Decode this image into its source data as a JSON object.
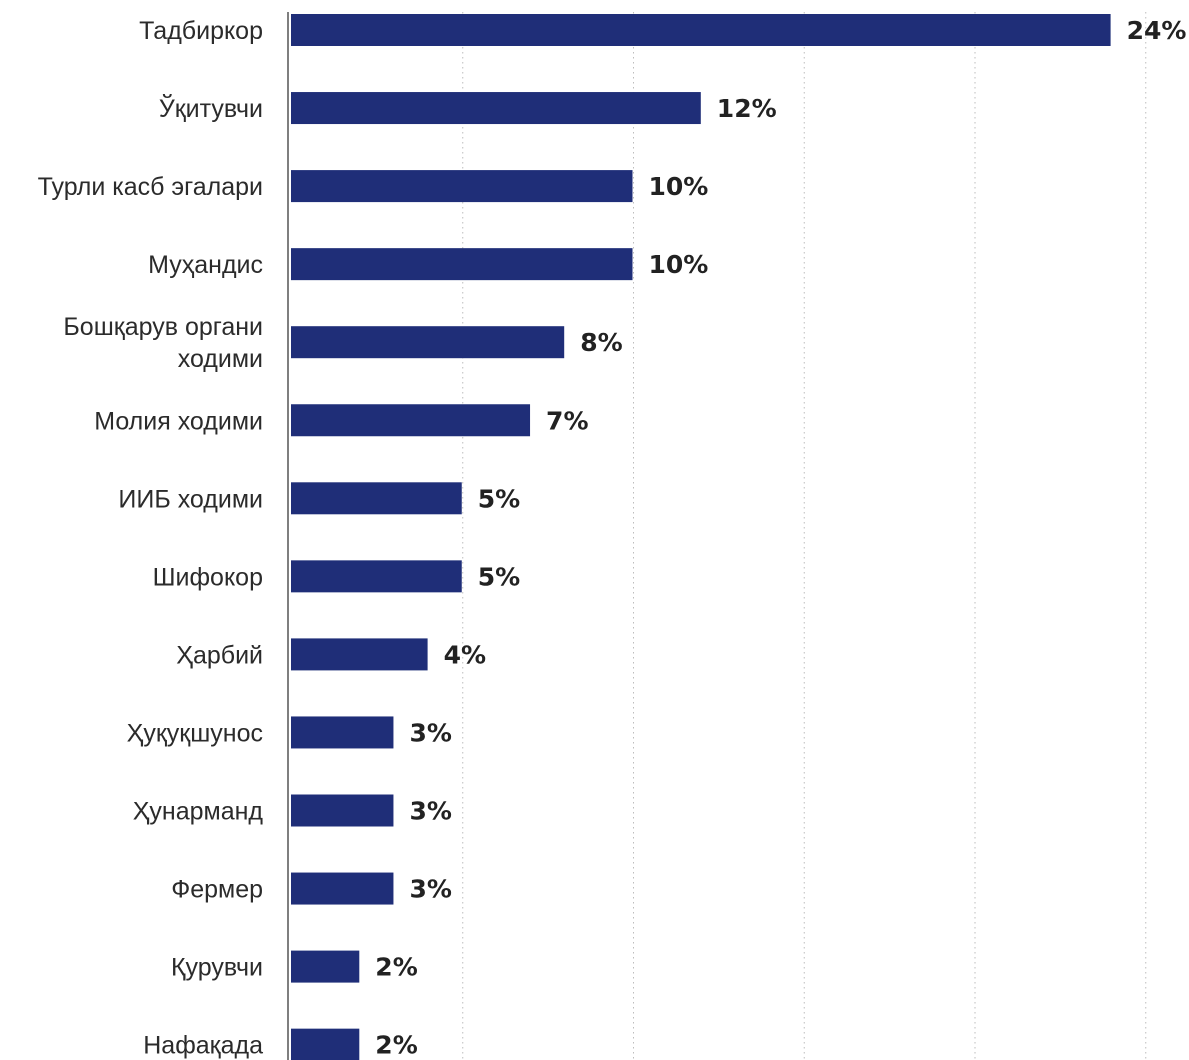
{
  "chart_data": {
    "type": "bar",
    "orientation": "horizontal",
    "categories": [
      "Тадбиркор",
      "Ўқитувчи",
      "Турли касб эгалари",
      "Муҳандис",
      "Бошқарув органи\nходими",
      "Молия ходими",
      "ИИБ ходими",
      "Шифокор",
      "Ҳарбий",
      "Ҳуқуқшунос",
      "Ҳунарманд",
      "Фермер",
      "Қурувчи",
      "Нафақада"
    ],
    "values": [
      24,
      12,
      10,
      10,
      8,
      7,
      5,
      5,
      4,
      3,
      3,
      3,
      2,
      2
    ],
    "value_labels": [
      "24%",
      "12%",
      "10%",
      "10%",
      "8%",
      "7%",
      "5%",
      "5%",
      "4%",
      "3%",
      "3%",
      "3%",
      "2%",
      "2%"
    ],
    "unit": "%",
    "xlim": [
      0,
      25
    ],
    "grid": "vertical-dotted",
    "colors": {
      "bar": "#1f2e78",
      "axis": "#555555",
      "grid": "#bdbdbd",
      "category_text": "#2b2b2b",
      "value_text": "#222222"
    }
  }
}
